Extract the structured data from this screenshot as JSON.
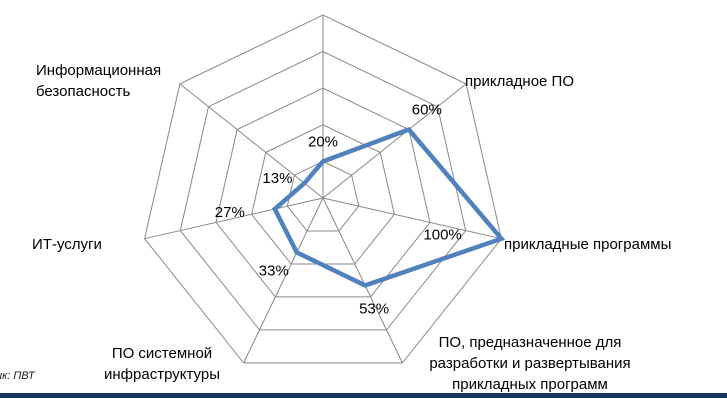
{
  "chart_data": {
    "type": "radar",
    "max": 100,
    "rings": 5,
    "categories": [
      [
        "прикладное ПО"
      ],
      [
        "прикладные программы"
      ],
      [
        "ПО, предназначенное для",
        "разработки и развертывания",
        "прикладных программ"
      ],
      [
        "ПО системной",
        "инфраструктуры"
      ],
      [
        "ИТ-услуги"
      ],
      [
        "Информационная",
        "безопасность"
      ],
      []
    ],
    "series": [
      {
        "values": [
          60,
          100,
          53,
          33,
          27,
          13,
          20
        ],
        "data_labels": [
          "60%",
          "100%",
          "53%",
          "33%",
          "27%",
          "13%",
          "20%"
        ],
        "color": "#4f81bd"
      }
    ],
    "grid_color": "#888888",
    "legend": "none"
  },
  "source_note": "ик: ПВТ",
  "footer_bar_color": "#17375e"
}
